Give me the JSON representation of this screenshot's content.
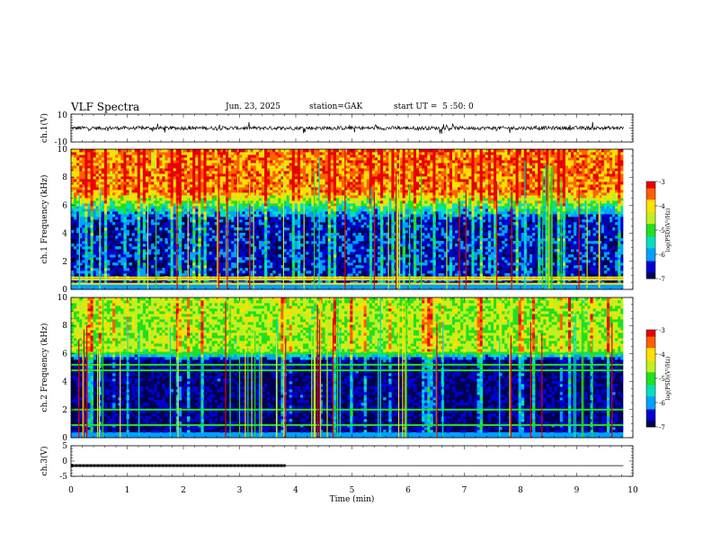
{
  "header": {
    "title": "VLF Spectra",
    "date": "Jun. 23, 2025",
    "station": "station=GAK",
    "start": "start UT =  5 :50: 0"
  },
  "chart_data": [
    {
      "type": "line",
      "title": "",
      "ylabel": "ch.1(V)",
      "xlabel": "",
      "xlim": [
        0,
        10
      ],
      "ylim": [
        -10,
        10
      ],
      "ytick_labels": [
        "10",
        "-10"
      ],
      "series": [
        {
          "description_values": {
            "mean": 0,
            "typical_range": [
              -1.5,
              1.5
            ],
            "spike_range": [
              -4,
              4
            ]
          }
        }
      ]
    },
    {
      "type": "heatmap",
      "title": "",
      "ylabel": "ch.1 Frequency (kHz)",
      "xlim": [
        0,
        9.83
      ],
      "ylim": [
        0,
        10
      ],
      "ytick_labels": [
        "0",
        "2",
        "4",
        "6",
        "8",
        "10"
      ],
      "colorbar": {
        "label": "log(PSD)(V²/Hz)",
        "range": [
          -7,
          -3
        ],
        "tick_labels": [
          "-3",
          "-4",
          "-5",
          "-6",
          "-7"
        ]
      },
      "colormap": [
        "#000050",
        "#0000d0",
        "#00a0ff",
        "#00e0c0",
        "#20e020",
        "#c0f020",
        "#ffe000",
        "#ff6000",
        "#e80000"
      ],
      "features": {
        "low_band_level_db": -6.6,
        "upper_band_level_db": -3.6,
        "transition_kHz": [
          5.0,
          7.0
        ],
        "strong_line_kHz": [
          0.4,
          0.7,
          0.85
        ]
      }
    },
    {
      "type": "heatmap",
      "title": "",
      "ylabel": "ch.2 Frequency (kHz)",
      "xlim": [
        0,
        9.83
      ],
      "ylim": [
        0,
        10
      ],
      "ytick_labels": [
        "0",
        "2",
        "4",
        "6",
        "8",
        "10"
      ],
      "colorbar": {
        "label": "log(PSD)(V²/Hz)",
        "range": [
          -7,
          -3
        ],
        "tick_labels": [
          "-3",
          "-4",
          "-5",
          "-6",
          "-7"
        ]
      },
      "features": {
        "low_band_level_db": -6.9,
        "upper_band_level_db": -4.6,
        "transition_kHz": [
          5.5,
          6.2
        ],
        "strong_line_kHz": [
          0.9,
          2.0,
          4.8,
          5.2,
          6.0
        ]
      }
    },
    {
      "type": "line",
      "title": "",
      "ylabel": "ch.3(V)",
      "xlabel": "Time (min)",
      "xlim": [
        0,
        10
      ],
      "ylim": [
        -5,
        5
      ],
      "x_tick_labels": [
        "0",
        "1",
        "2",
        "3",
        "4",
        "5",
        "6",
        "7",
        "8",
        "9",
        "10"
      ],
      "ytick_labels": [
        "5",
        "0",
        "-5"
      ],
      "series": [
        {
          "x": [
            0,
            9.83
          ],
          "y": [
            -1.5,
            -1.5
          ]
        },
        {
          "description": "pulse markers",
          "x": [
            0,
            3.82
          ],
          "y": [
            -1.5,
            -1.5
          ]
        }
      ]
    }
  ]
}
